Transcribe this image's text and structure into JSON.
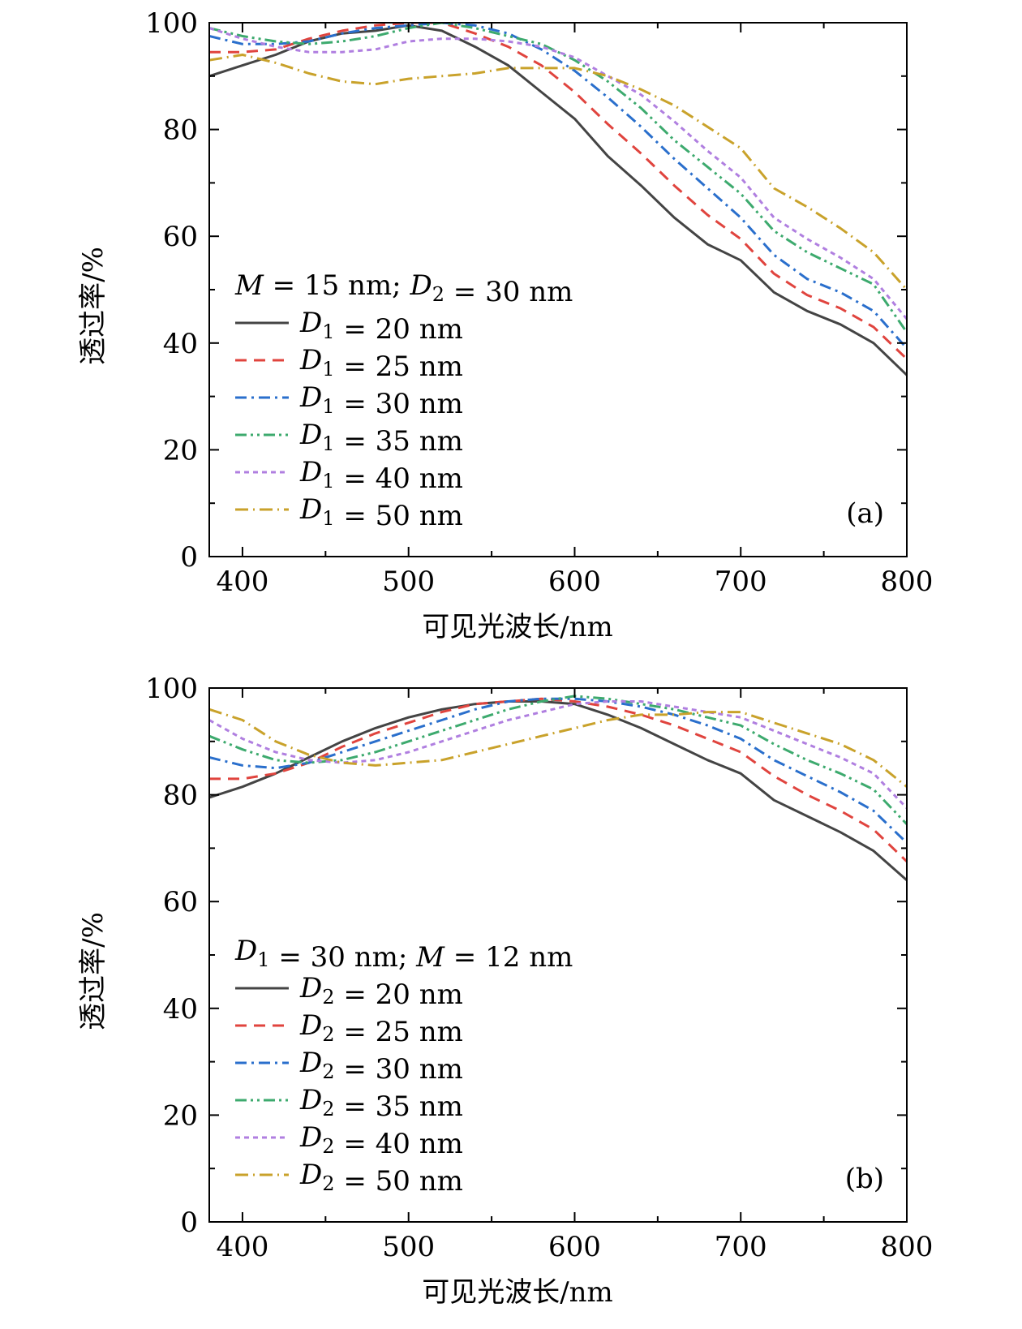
{
  "chart_data": [
    {
      "type": "line",
      "panel_label": "(a)",
      "xlabel": "可见光波长/nm",
      "ylabel": "透过率/%",
      "xlim": [
        380,
        800
      ],
      "ylim": [
        0,
        100
      ],
      "xticks": [
        "400",
        "500",
        "600",
        "700",
        "800"
      ],
      "yticks": [
        "0",
        "20",
        "40",
        "60",
        "80",
        "100"
      ],
      "legend": {
        "placement": "lower-left",
        "header": "M = 15 nm; D₂ = 30 nm"
      },
      "grid": false,
      "x": [
        380,
        400,
        420,
        440,
        460,
        480,
        500,
        520,
        540,
        560,
        580,
        600,
        620,
        640,
        660,
        680,
        700,
        720,
        740,
        760,
        780,
        800
      ],
      "series": [
        {
          "name": "D₁ = 20 nm",
          "color": "#444444",
          "dash": "solid",
          "values": [
            90,
            92,
            94,
            96.5,
            98,
            98.5,
            99.5,
            98.5,
            95.5,
            92,
            87,
            82,
            75,
            69.5,
            63.5,
            58.5,
            55.5,
            49.5,
            46,
            43.5,
            40,
            34
          ]
        },
        {
          "name": "D₁ = 25 nm",
          "color": "#e0443e",
          "dash": "dashed",
          "values": [
            94.5,
            94.5,
            95,
            97,
            98.5,
            99.5,
            100,
            100,
            98,
            95.5,
            92,
            87,
            81,
            75.5,
            69.5,
            64,
            59.5,
            53,
            49,
            46.5,
            43,
            37
          ]
        },
        {
          "name": "D₁ = 30 nm",
          "color": "#2a6fcc",
          "dash": "dashdot",
          "values": [
            97.5,
            96,
            96,
            96.5,
            98,
            99,
            99.5,
            100,
            99.5,
            98,
            95,
            91,
            86,
            80.5,
            74.5,
            69,
            63.5,
            56.5,
            52,
            49.5,
            46,
            39
          ]
        },
        {
          "name": "D₁ = 35 nm",
          "color": "#3daa6e",
          "dash": "dashdotdot",
          "values": [
            99,
            97.5,
            96.5,
            96,
            96.5,
            97.5,
            99,
            100,
            99,
            97.5,
            96,
            93,
            89,
            84,
            78,
            73,
            68,
            61,
            57,
            54,
            51,
            42
          ]
        },
        {
          "name": "D₁ = 40 nm",
          "color": "#b07fe0",
          "dash": "dotted",
          "values": [
            99,
            97,
            95.5,
            94.5,
            94.5,
            95,
            96.5,
            97,
            97,
            96.5,
            95.5,
            93.5,
            90,
            86.5,
            81.5,
            76,
            71,
            63.5,
            59.5,
            56,
            52,
            44.5
          ]
        },
        {
          "name": "D₁ = 50 nm",
          "color": "#c9a22b",
          "dash": "dashdotlong",
          "values": [
            93,
            94,
            92.5,
            90.5,
            89,
            88.5,
            89.5,
            90,
            90.5,
            91.5,
            91.5,
            91.5,
            90,
            87.5,
            84.5,
            80.5,
            76.5,
            69,
            65.5,
            61.5,
            57,
            50
          ]
        }
      ]
    },
    {
      "type": "line",
      "panel_label": "(b)",
      "xlabel": "可见光波长/nm",
      "ylabel": "透过率/%",
      "xlim": [
        380,
        800
      ],
      "ylim": [
        0,
        100
      ],
      "xticks": [
        "400",
        "500",
        "600",
        "700",
        "800"
      ],
      "yticks": [
        "0",
        "20",
        "40",
        "60",
        "80",
        "100"
      ],
      "legend": {
        "placement": "lower-left",
        "header": "D₁ = 30 nm; M = 12 nm"
      },
      "grid": false,
      "x": [
        380,
        400,
        420,
        440,
        460,
        480,
        500,
        520,
        540,
        560,
        580,
        600,
        620,
        640,
        660,
        680,
        700,
        720,
        740,
        760,
        780,
        800
      ],
      "series": [
        {
          "name": "D₂ = 20 nm",
          "color": "#444444",
          "dash": "solid",
          "values": [
            79.5,
            81.5,
            84,
            87,
            90,
            92.5,
            94.5,
            96,
            97,
            97.5,
            97.5,
            97,
            95,
            92.5,
            89.5,
            86.5,
            84,
            79,
            76,
            73,
            69.5,
            64
          ]
        },
        {
          "name": "D₂ = 25 nm",
          "color": "#e0443e",
          "dash": "dashed",
          "values": [
            83,
            83,
            84,
            86,
            89,
            91.5,
            93.5,
            95.5,
            97,
            97.5,
            98,
            97.5,
            96.5,
            95,
            93,
            90.5,
            88,
            83.5,
            80,
            77,
            73.5,
            67.5
          ]
        },
        {
          "name": "D₂ = 30 nm",
          "color": "#2a6fcc",
          "dash": "dashdot",
          "values": [
            87,
            85.5,
            85,
            86,
            88,
            90,
            92,
            94,
            96,
            97.5,
            98,
            98,
            97.5,
            96.5,
            95,
            93,
            90.5,
            86.5,
            83.5,
            80.5,
            77,
            71
          ]
        },
        {
          "name": "D₂ = 35 nm",
          "color": "#3daa6e",
          "dash": "dashdotdot",
          "values": [
            91,
            88.5,
            86.5,
            86,
            86.5,
            88,
            90,
            92,
            94,
            96,
            97.5,
            98.5,
            98,
            97,
            96,
            94.5,
            93,
            89.5,
            86.5,
            84,
            81,
            74.5
          ]
        },
        {
          "name": "D₂ = 40 nm",
          "color": "#b07fe0",
          "dash": "dotted",
          "values": [
            94,
            90.5,
            88,
            86.5,
            86,
            86.5,
            88,
            90,
            92,
            94,
            95.5,
            97,
            97.5,
            97.5,
            96.5,
            95.5,
            94.5,
            92,
            89.5,
            87,
            84,
            77.5
          ]
        },
        {
          "name": "D₂ = 50 nm",
          "color": "#c9a22b",
          "dash": "dashdotlong",
          "values": [
            96,
            94,
            90,
            87.5,
            86,
            85.5,
            86,
            86.5,
            88,
            89.5,
            91,
            92.5,
            94,
            95,
            95,
            95.5,
            95.5,
            93.5,
            91.5,
            89.5,
            86.5,
            81.5
          ]
        }
      ]
    }
  ]
}
